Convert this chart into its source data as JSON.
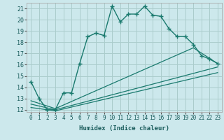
{
  "xlabel": "Humidex (Indice chaleur)",
  "background_color": "#cce8ec",
  "grid_color": "#aacccc",
  "line_color": "#1a7a6e",
  "xlim": [
    -0.5,
    23.5
  ],
  "ylim": [
    11.8,
    21.5
  ],
  "xticks": [
    0,
    1,
    2,
    3,
    4,
    5,
    6,
    7,
    8,
    9,
    10,
    11,
    12,
    13,
    14,
    15,
    16,
    17,
    18,
    19,
    20,
    21,
    22,
    23
  ],
  "yticks": [
    12,
    13,
    14,
    15,
    16,
    17,
    18,
    19,
    20,
    21
  ],
  "series1_x": [
    0,
    1,
    2,
    3,
    4,
    5,
    6,
    7,
    8,
    9,
    10,
    11,
    12,
    13,
    14,
    15,
    16,
    17,
    18,
    19,
    20,
    21,
    22,
    23
  ],
  "series1_y": [
    14.5,
    13.0,
    12.0,
    12.0,
    13.5,
    13.5,
    16.1,
    18.5,
    18.8,
    18.6,
    21.2,
    19.8,
    20.5,
    20.5,
    21.2,
    20.4,
    20.3,
    19.2,
    18.5,
    18.5,
    17.8,
    16.8,
    16.5,
    16.1
  ],
  "series2_x": [
    0,
    3,
    20,
    23
  ],
  "series2_y": [
    12.8,
    12.1,
    17.5,
    16.1
  ],
  "series3_x": [
    0,
    3,
    23
  ],
  "series3_y": [
    12.5,
    12.0,
    15.8
  ],
  "series4_x": [
    0,
    3,
    23
  ],
  "series4_y": [
    12.2,
    11.9,
    15.3
  ]
}
